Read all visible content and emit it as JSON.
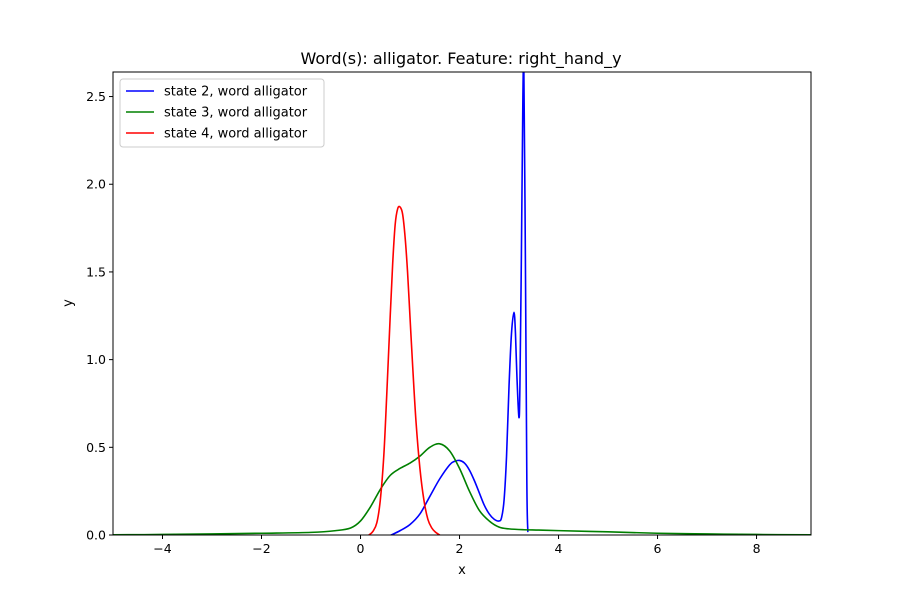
{
  "chart_data": {
    "type": "line",
    "title": "Word(s): alligator. Feature: right_hand_y",
    "xlabel": "x",
    "ylabel": "y",
    "xlim": [
      -5,
      9.1
    ],
    "ylim": [
      0,
      2.64
    ],
    "xticks": [
      -4,
      -2,
      0,
      2,
      4,
      6,
      8
    ],
    "xtick_labels": [
      "−4",
      "−2",
      "0",
      "2",
      "4",
      "6",
      "8"
    ],
    "yticks": [
      0.0,
      0.5,
      1.0,
      1.5,
      2.0,
      2.5
    ],
    "ytick_labels": [
      "0.0",
      "0.5",
      "1.0",
      "1.5",
      "2.0",
      "2.5"
    ],
    "grid": false,
    "legend_position": "upper left",
    "series": [
      {
        "name": "state 2, word alligator",
        "color": "#0000ff",
        "x": [
          0.62,
          0.8,
          1.0,
          1.2,
          1.4,
          1.6,
          1.8,
          1.9,
          2.0,
          2.1,
          2.2,
          2.3,
          2.4,
          2.5,
          2.6,
          2.7,
          2.8,
          2.85,
          2.9,
          2.95,
          3.0,
          3.05,
          3.1,
          3.13,
          3.16,
          3.2,
          3.22,
          3.25,
          3.28,
          3.3,
          3.33,
          3.36,
          3.38
        ],
        "y": [
          0.0,
          0.025,
          0.06,
          0.12,
          0.22,
          0.32,
          0.4,
          0.42,
          0.425,
          0.41,
          0.37,
          0.31,
          0.24,
          0.17,
          0.12,
          0.09,
          0.08,
          0.1,
          0.2,
          0.45,
          0.85,
          1.15,
          1.27,
          1.15,
          0.9,
          0.67,
          0.85,
          1.6,
          2.5,
          2.64,
          1.6,
          0.3,
          0.02
        ]
      },
      {
        "name": "state 3, word alligator",
        "color": "#008000",
        "x": [
          -5,
          -4,
          -3,
          -2,
          -1,
          -0.5,
          -0.2,
          0,
          0.2,
          0.4,
          0.6,
          0.8,
          1.0,
          1.2,
          1.4,
          1.6,
          1.8,
          2.0,
          2.2,
          2.4,
          2.6,
          2.8,
          3.0,
          3.3,
          3.6,
          4,
          5,
          6,
          7,
          8,
          9.1
        ],
        "y": [
          0.001,
          0.003,
          0.006,
          0.01,
          0.015,
          0.025,
          0.04,
          0.08,
          0.16,
          0.26,
          0.34,
          0.38,
          0.41,
          0.45,
          0.5,
          0.52,
          0.48,
          0.38,
          0.25,
          0.14,
          0.08,
          0.045,
          0.035,
          0.03,
          0.028,
          0.025,
          0.018,
          0.01,
          0.006,
          0.003,
          0.001
        ]
      },
      {
        "name": "state 4, word alligator",
        "color": "#ff0000",
        "x": [
          0.17,
          0.25,
          0.33,
          0.4,
          0.47,
          0.53,
          0.6,
          0.65,
          0.7,
          0.75,
          0.8,
          0.85,
          0.9,
          0.95,
          1.0,
          1.05,
          1.12,
          1.2,
          1.28,
          1.36,
          1.44,
          1.52,
          1.6
        ],
        "y": [
          0.0,
          0.02,
          0.07,
          0.2,
          0.45,
          0.8,
          1.25,
          1.55,
          1.77,
          1.86,
          1.87,
          1.83,
          1.7,
          1.5,
          1.24,
          0.98,
          0.65,
          0.38,
          0.2,
          0.09,
          0.04,
          0.015,
          0.0
        ]
      }
    ]
  }
}
